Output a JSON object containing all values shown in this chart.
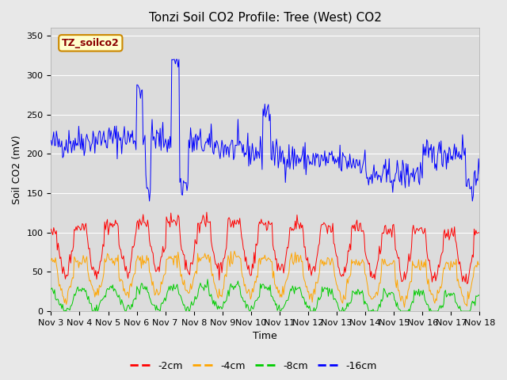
{
  "title": "Tonzi Soil CO2 Profile: Tree (West) CO2",
  "ylabel": "Soil CO2 (mV)",
  "xlabel": "Time",
  "legend_label": "TZ_soilco2",
  "series_labels": [
    "-2cm",
    "-4cm",
    "-8cm",
    "-16cm"
  ],
  "series_colors": [
    "#ff0000",
    "#ffa500",
    "#00cc00",
    "#0000ff"
  ],
  "ylim": [
    0,
    360
  ],
  "yticks": [
    0,
    50,
    100,
    150,
    200,
    250,
    300,
    350
  ],
  "xticklabels": [
    "Nov 3",
    "Nov 4",
    "Nov 5",
    "Nov 6",
    "Nov 7",
    "Nov 8",
    "Nov 9",
    "Nov 10",
    "Nov 11",
    "Nov 12",
    "Nov 13",
    "Nov 14",
    "Nov 15",
    "Nov 16",
    "Nov 17",
    "Nov 18"
  ],
  "fig_bg_color": "#e8e8e8",
  "plot_bg_color": "#dcdcdc",
  "title_fontsize": 11,
  "axis_fontsize": 9,
  "tick_fontsize": 8,
  "legend_fontsize": 9,
  "n_points": 480,
  "seed": 42
}
